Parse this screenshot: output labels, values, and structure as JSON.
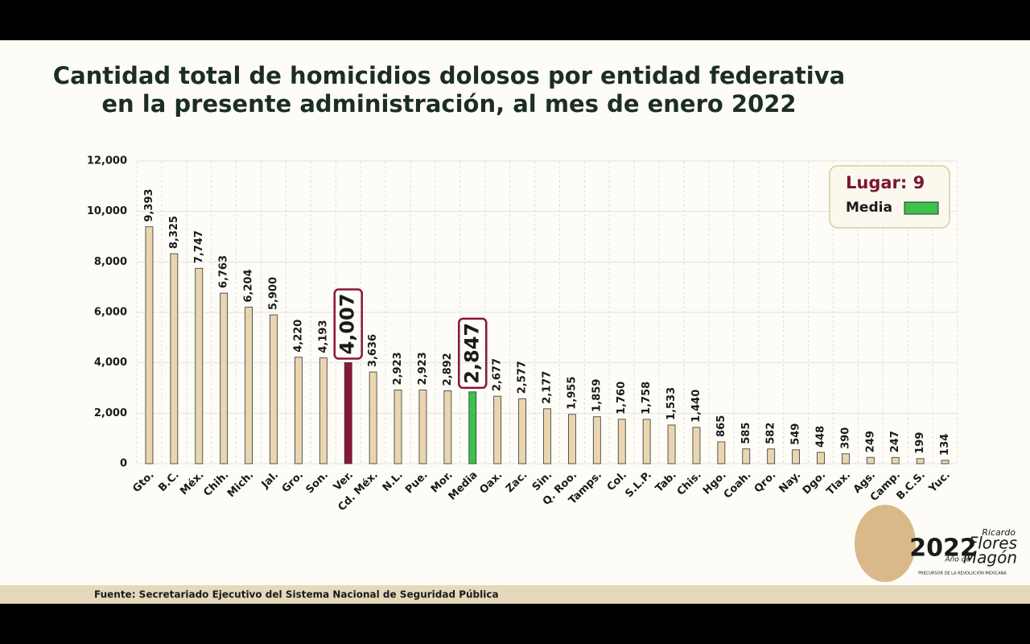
{
  "chart_data": {
    "type": "bar",
    "title": [
      "Cantidad total de homicidios dolosos por entidad federativa",
      "en la presente administración, al mes de enero 2022"
    ],
    "categories": [
      "Gto.",
      "B.C.",
      "Méx.",
      "Chih.",
      "Mich.",
      "Jal.",
      "Gro.",
      "Son.",
      "Ver.",
      "Cd. Méx.",
      "N.L.",
      "Pue.",
      "Mor.",
      "Media",
      "Oax.",
      "Zac.",
      "Sin.",
      "Q. Roo.",
      "Tamps.",
      "Col.",
      "S.L.P.",
      "Tab.",
      "Chis.",
      "Hgo.",
      "Coah.",
      "Qro.",
      "Nay.",
      "Dgo.",
      "Tlax.",
      "Ags.",
      "Camp.",
      "B.C.S.",
      "Yuc."
    ],
    "values": [
      9393,
      8325,
      7747,
      6763,
      6204,
      5900,
      4220,
      4193,
      4007,
      3636,
      2923,
      2923,
      2892,
      2847,
      2677,
      2577,
      2177,
      1955,
      1859,
      1760,
      1758,
      1533,
      1440,
      865,
      585,
      582,
      549,
      448,
      390,
      249,
      247,
      199,
      134
    ],
    "value_labels": [
      "9,393",
      "8,325",
      "7,747",
      "6,763",
      "6,204",
      "5,900",
      "4,220",
      "4,193",
      "4,007",
      "3,636",
      "2,923",
      "2,923",
      "2,892",
      "2,847",
      "2,677",
      "2,577",
      "2,177",
      "1,955",
      "1,859",
      "1,760",
      "1,758",
      "1,533",
      "1,440",
      "865",
      "585",
      "582",
      "549",
      "448",
      "390",
      "249",
      "247",
      "199",
      "134"
    ],
    "color": "#e9d6b0",
    "colors": [
      "#e9d6b0",
      "#e9d6b0",
      "#e9d6b0",
      "#e9d6b0",
      "#e9d6b0",
      "#e9d6b0",
      "#e9d6b0",
      "#e9d6b0",
      "#8b1538",
      "#e9d6b0",
      "#e9d6b0",
      "#e9d6b0",
      "#e9d6b0",
      "#3cc24a",
      "#e9d6b0",
      "#e9d6b0",
      "#e9d6b0",
      "#e9d6b0",
      "#e9d6b0",
      "#e9d6b0",
      "#e9d6b0",
      "#e9d6b0",
      "#e9d6b0",
      "#e9d6b0",
      "#e9d6b0",
      "#e9d6b0",
      "#e9d6b0",
      "#e9d6b0",
      "#e9d6b0",
      "#e9d6b0",
      "#e9d6b0",
      "#e9d6b0",
      "#e9d6b0"
    ],
    "ylim": [
      0,
      12000
    ],
    "yticks": [
      0,
      {
        "value": 2000,
        "label": "2,000"
      },
      {
        "value": 4000,
        "label": "4,000"
      },
      {
        "value": 6000,
        "label": "6,000"
      },
      {
        "value": 8000,
        "label": "8,000"
      },
      {
        "value": 10000,
        "label": "10,000"
      },
      {
        "value": 12000,
        "label": "12,000"
      }
    ],
    "grid": true,
    "legend": {
      "title": "Lugar: 9",
      "label": "Media",
      "color": "#3cc24a",
      "position": "upper right"
    }
  },
  "source": "Fuente: Secretariado Ejecutivo del Sistema Nacional de Seguridad Pública",
  "logo": {
    "year": "2022",
    "first": "Ricardo",
    "name1": "Flores",
    "prefix": "Año de",
    "name2": "Magón",
    "tagline": "PRECURSOR DE LA REVOLUCIÓN MEXICANA"
  }
}
